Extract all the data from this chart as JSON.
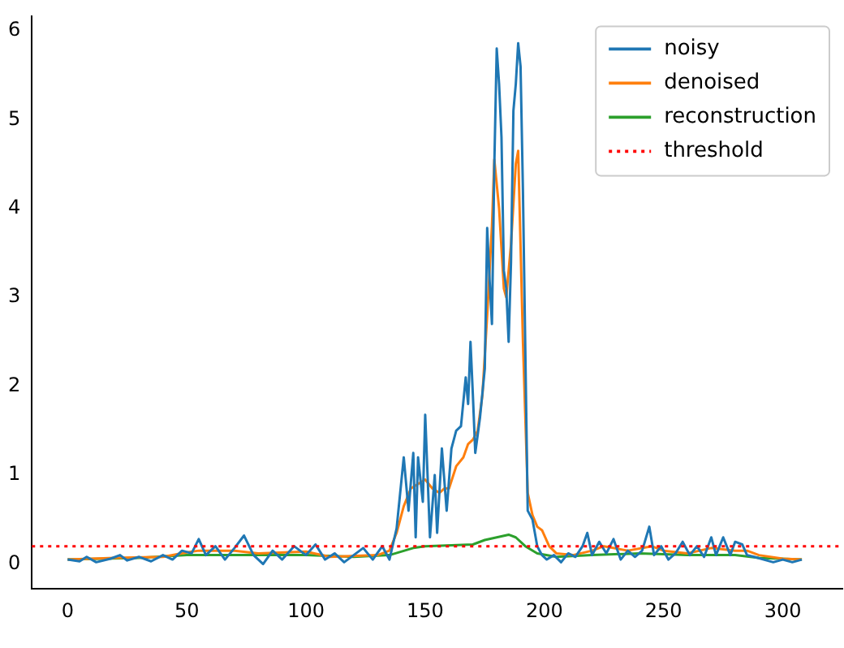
{
  "chart_data": {
    "type": "line",
    "legend": "top right",
    "grid": false,
    "marker": "none",
    "xlim": [
      -15,
      325
    ],
    "xticks": [
      0,
      50,
      100,
      150,
      200,
      250,
      300
    ],
    "ylim": [
      -0.28,
      6.16
    ],
    "yticks": [
      0,
      1,
      2,
      3,
      4,
      5,
      6
    ],
    "series": [
      {
        "name": "noisy",
        "color": "#1f77b4",
        "x": [
          0,
          5,
          8,
          12,
          18,
          22,
          25,
          30,
          35,
          40,
          44,
          48,
          52,
          55,
          58,
          62,
          66,
          70,
          74,
          78,
          82,
          86,
          90,
          95,
          100,
          104,
          108,
          112,
          116,
          120,
          124,
          128,
          132,
          135,
          138,
          141,
          143,
          145,
          146,
          147,
          149,
          150,
          152,
          154,
          155,
          157,
          159,
          161,
          163,
          165,
          167,
          168,
          169,
          170,
          171,
          173,
          175,
          176,
          177,
          178,
          179,
          180,
          181,
          182,
          183,
          184,
          185,
          186,
          187,
          188,
          189,
          190,
          191,
          193,
          195,
          197,
          199,
          201,
          204,
          207,
          210,
          213,
          216,
          218,
          220,
          223,
          226,
          229,
          232,
          235,
          238,
          241,
          244,
          246,
          249,
          252,
          255,
          258,
          261,
          264,
          267,
          270,
          272,
          275,
          278,
          280,
          283,
          285,
          288,
          292,
          296,
          300,
          304,
          308
        ],
        "values": [
          0.05,
          0.03,
          0.08,
          0.02,
          0.06,
          0.1,
          0.04,
          0.08,
          0.03,
          0.1,
          0.05,
          0.15,
          0.12,
          0.28,
          0.1,
          0.2,
          0.05,
          0.18,
          0.32,
          0.1,
          0.0,
          0.15,
          0.05,
          0.2,
          0.1,
          0.22,
          0.05,
          0.12,
          0.02,
          0.1,
          0.18,
          0.05,
          0.2,
          0.05,
          0.4,
          1.2,
          0.6,
          1.25,
          0.3,
          1.2,
          0.7,
          1.68,
          0.3,
          1.0,
          0.35,
          1.3,
          0.6,
          1.3,
          1.5,
          1.55,
          2.1,
          1.8,
          2.5,
          1.9,
          1.25,
          1.65,
          2.2,
          3.78,
          3.2,
          2.7,
          4.5,
          5.8,
          5.4,
          4.8,
          3.3,
          3.1,
          2.5,
          3.4,
          5.1,
          5.4,
          5.86,
          5.6,
          4.2,
          0.6,
          0.5,
          0.2,
          0.1,
          0.05,
          0.1,
          0.02,
          0.12,
          0.08,
          0.2,
          0.35,
          0.1,
          0.25,
          0.12,
          0.28,
          0.05,
          0.15,
          0.08,
          0.15,
          0.42,
          0.1,
          0.2,
          0.05,
          0.12,
          0.25,
          0.1,
          0.2,
          0.08,
          0.3,
          0.1,
          0.3,
          0.1,
          0.25,
          0.22,
          0.1,
          0.08,
          0.05,
          0.02,
          0.05,
          0.02,
          0.05
        ]
      },
      {
        "name": "denoised",
        "color": "#ff7f0e",
        "x": [
          0,
          20,
          40,
          50,
          55,
          70,
          80,
          100,
          110,
          130,
          135,
          138,
          141,
          144,
          147,
          150,
          153,
          156,
          158,
          160,
          163,
          166,
          168,
          170,
          172,
          174,
          176,
          178,
          179,
          181,
          183,
          184,
          186,
          188,
          189,
          191,
          193,
          195,
          197,
          199,
          202,
          205,
          212,
          220,
          225,
          235,
          245,
          250,
          260,
          270,
          280,
          285,
          290,
          300,
          308
        ],
        "values": [
          0.05,
          0.07,
          0.08,
          0.13,
          0.15,
          0.15,
          0.12,
          0.14,
          0.08,
          0.1,
          0.15,
          0.35,
          0.65,
          0.85,
          0.9,
          0.95,
          0.85,
          0.8,
          0.85,
          0.85,
          1.1,
          1.2,
          1.35,
          1.4,
          1.5,
          1.9,
          2.8,
          3.8,
          4.55,
          4.0,
          3.1,
          3.0,
          3.6,
          4.5,
          4.65,
          2.5,
          0.8,
          0.55,
          0.42,
          0.38,
          0.2,
          0.12,
          0.1,
          0.15,
          0.2,
          0.15,
          0.2,
          0.15,
          0.12,
          0.18,
          0.15,
          0.15,
          0.1,
          0.06,
          0.05
        ]
      },
      {
        "name": "reconstruction",
        "color": "#2ca02c",
        "x": [
          0,
          30,
          50,
          100,
          120,
          135,
          145,
          150,
          170,
          175,
          180,
          185,
          188,
          192,
          197,
          205,
          220,
          240,
          260,
          280,
          290,
          308
        ],
        "values": [
          0.05,
          0.07,
          0.1,
          0.1,
          0.08,
          0.1,
          0.18,
          0.2,
          0.22,
          0.27,
          0.3,
          0.33,
          0.3,
          0.2,
          0.12,
          0.08,
          0.1,
          0.12,
          0.1,
          0.1,
          0.07,
          0.05
        ]
      }
    ],
    "ref_lines": [
      {
        "axis": "y",
        "value": 0.2,
        "label": "threshold",
        "color": "#ff0000",
        "line_style": "dotted"
      }
    ]
  }
}
